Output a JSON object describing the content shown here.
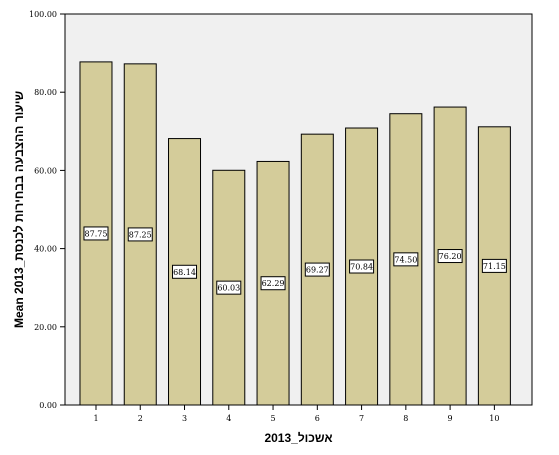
{
  "chart_data": {
    "type": "bar",
    "categories": [
      "1",
      "2",
      "3",
      "4",
      "5",
      "6",
      "7",
      "8",
      "9",
      "10"
    ],
    "values": [
      87.75,
      87.25,
      68.14,
      60.03,
      62.29,
      69.27,
      70.84,
      74.5,
      76.2,
      71.15
    ],
    "data_labels": [
      "87.75",
      "87.25",
      "68.14",
      "60.03",
      "62.29",
      "69.27",
      "70.84",
      "74.50",
      "76.20",
      "71.15"
    ],
    "title": "",
    "xlabel": "אשכול_2013",
    "ylabel": "Mean 2013_שיעור ההצבעה בבחירות לכנסת",
    "ylim": [
      0,
      100
    ],
    "yticks": [
      "0.00",
      "20.00",
      "40.00",
      "60.00",
      "80.00",
      "100.00"
    ],
    "grid": false,
    "colors": {
      "bar_fill": "#d4cc9a",
      "bar_stroke": "#000000",
      "plot_background": "#f0f0f0",
      "label_box": "#ffffff"
    }
  }
}
